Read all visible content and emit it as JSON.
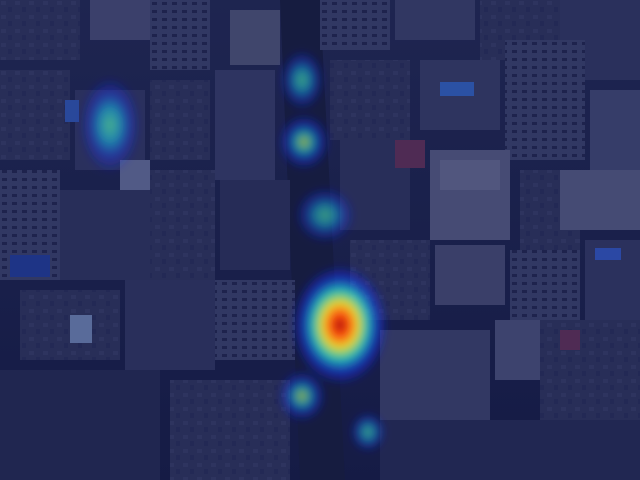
{
  "image": {
    "description_kind": "aerial city view with density heatmap overlay",
    "colormap": "jet",
    "overlay_tint": "#0a1250",
    "colors": {
      "low": "#1a2cff",
      "mid": "#19e0d0",
      "high_mid": "#f2e22a",
      "high": "#ff4a10",
      "peak": "#a00c0c"
    }
  },
  "heatmap": {
    "hotspots": [
      {
        "id": "hotspot-left-tower",
        "intensity": 0.45
      },
      {
        "id": "hotspot-upper-street",
        "intensity": 0.35
      },
      {
        "id": "hotspot-street-upper-mid",
        "intensity": 0.42
      },
      {
        "id": "hotspot-street-mid",
        "intensity": 0.28
      },
      {
        "id": "hotspot-street-peak",
        "intensity": 1.0
      },
      {
        "id": "hotspot-street-lower",
        "intensity": 0.4
      },
      {
        "id": "hotspot-bottom-right",
        "intensity": 0.3
      }
    ]
  }
}
